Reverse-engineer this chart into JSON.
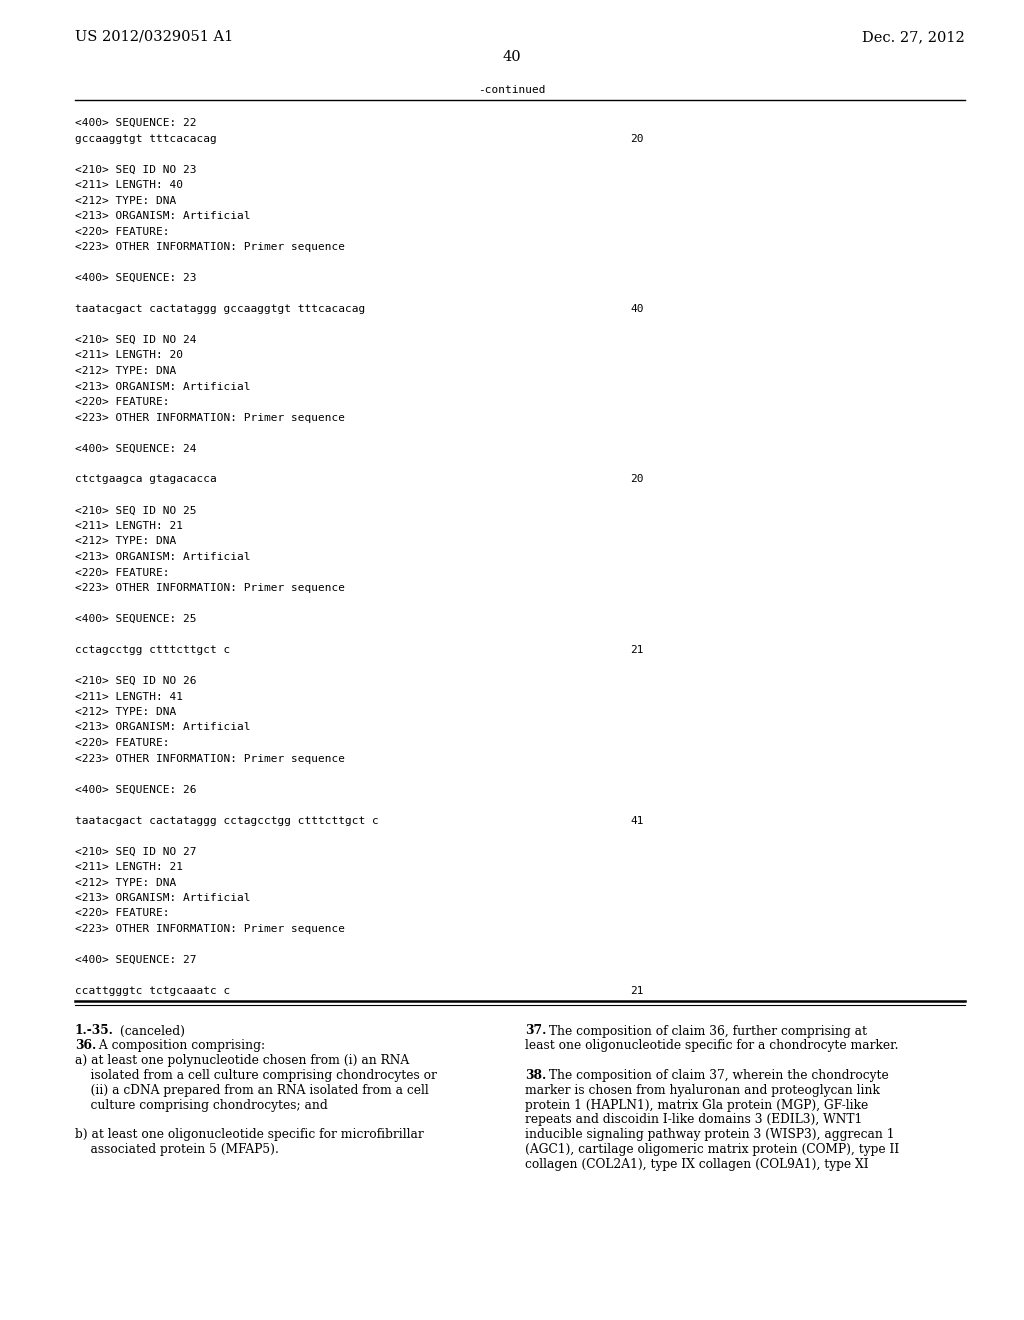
{
  "header_left": "US 2012/0329051 A1",
  "header_right": "Dec. 27, 2012",
  "page_number": "40",
  "continued_label": "-continued",
  "bg_color": "#ffffff",
  "text_color": "#000000",
  "mono_fontsize": 8.0,
  "body_fontsize": 8.8,
  "header_fontsize": 10.5,
  "seq_lines": [
    {
      "text": "<400> SEQUENCE: 22",
      "right_text": null
    },
    {
      "text": "gccaaggtgt tttcacacag",
      "right_text": "20"
    },
    {
      "text": "",
      "right_text": null
    },
    {
      "text": "<210> SEQ ID NO 23",
      "right_text": null
    },
    {
      "text": "<211> LENGTH: 40",
      "right_text": null
    },
    {
      "text": "<212> TYPE: DNA",
      "right_text": null
    },
    {
      "text": "<213> ORGANISM: Artificial",
      "right_text": null
    },
    {
      "text": "<220> FEATURE:",
      "right_text": null
    },
    {
      "text": "<223> OTHER INFORMATION: Primer sequence",
      "right_text": null
    },
    {
      "text": "",
      "right_text": null
    },
    {
      "text": "<400> SEQUENCE: 23",
      "right_text": null
    },
    {
      "text": "",
      "right_text": null
    },
    {
      "text": "taatacgact cactataggg gccaaggtgt tttcacacag",
      "right_text": "40"
    },
    {
      "text": "",
      "right_text": null
    },
    {
      "text": "<210> SEQ ID NO 24",
      "right_text": null
    },
    {
      "text": "<211> LENGTH: 20",
      "right_text": null
    },
    {
      "text": "<212> TYPE: DNA",
      "right_text": null
    },
    {
      "text": "<213> ORGANISM: Artificial",
      "right_text": null
    },
    {
      "text": "<220> FEATURE:",
      "right_text": null
    },
    {
      "text": "<223> OTHER INFORMATION: Primer sequence",
      "right_text": null
    },
    {
      "text": "",
      "right_text": null
    },
    {
      "text": "<400> SEQUENCE: 24",
      "right_text": null
    },
    {
      "text": "",
      "right_text": null
    },
    {
      "text": "ctctgaagca gtagacacca",
      "right_text": "20"
    },
    {
      "text": "",
      "right_text": null
    },
    {
      "text": "<210> SEQ ID NO 25",
      "right_text": null
    },
    {
      "text": "<211> LENGTH: 21",
      "right_text": null
    },
    {
      "text": "<212> TYPE: DNA",
      "right_text": null
    },
    {
      "text": "<213> ORGANISM: Artificial",
      "right_text": null
    },
    {
      "text": "<220> FEATURE:",
      "right_text": null
    },
    {
      "text": "<223> OTHER INFORMATION: Primer sequence",
      "right_text": null
    },
    {
      "text": "",
      "right_text": null
    },
    {
      "text": "<400> SEQUENCE: 25",
      "right_text": null
    },
    {
      "text": "",
      "right_text": null
    },
    {
      "text": "cctagcctgg ctttcttgct c",
      "right_text": "21"
    },
    {
      "text": "",
      "right_text": null
    },
    {
      "text": "<210> SEQ ID NO 26",
      "right_text": null
    },
    {
      "text": "<211> LENGTH: 41",
      "right_text": null
    },
    {
      "text": "<212> TYPE: DNA",
      "right_text": null
    },
    {
      "text": "<213> ORGANISM: Artificial",
      "right_text": null
    },
    {
      "text": "<220> FEATURE:",
      "right_text": null
    },
    {
      "text": "<223> OTHER INFORMATION: Primer sequence",
      "right_text": null
    },
    {
      "text": "",
      "right_text": null
    },
    {
      "text": "<400> SEQUENCE: 26",
      "right_text": null
    },
    {
      "text": "",
      "right_text": null
    },
    {
      "text": "taatacgact cactataggg cctagcctgg ctttcttgct c",
      "right_text": "41"
    },
    {
      "text": "",
      "right_text": null
    },
    {
      "text": "<210> SEQ ID NO 27",
      "right_text": null
    },
    {
      "text": "<211> LENGTH: 21",
      "right_text": null
    },
    {
      "text": "<212> TYPE: DNA",
      "right_text": null
    },
    {
      "text": "<213> ORGANISM: Artificial",
      "right_text": null
    },
    {
      "text": "<220> FEATURE:",
      "right_text": null
    },
    {
      "text": "<223> OTHER INFORMATION: Primer sequence",
      "right_text": null
    },
    {
      "text": "",
      "right_text": null
    },
    {
      "text": "<400> SEQUENCE: 27",
      "right_text": null
    },
    {
      "text": "",
      "right_text": null
    },
    {
      "text": "ccattgggtc tctgcaaatc c",
      "right_text": "21"
    }
  ],
  "left_claims": [
    {
      "bold": "1.-35.",
      "rest": " (canceled)",
      "indent": 0
    },
    {
      "bold": "36.",
      "rest": " A composition comprising:",
      "indent": 0
    },
    {
      "bold": null,
      "rest": "a) at least one polynucleotide chosen from (i) an RNA",
      "indent": 0
    },
    {
      "bold": null,
      "rest": "    isolated from a cell culture comprising chondrocytes or",
      "indent": 0
    },
    {
      "bold": null,
      "rest": "    (ii) a cDNA prepared from an RNA isolated from a cell",
      "indent": 0
    },
    {
      "bold": null,
      "rest": "    culture comprising chondrocytes; and",
      "indent": 0
    },
    {
      "bold": null,
      "rest": "",
      "indent": 0
    },
    {
      "bold": null,
      "rest": "b) at least one oligonucleotide specific for microfibrillar",
      "indent": 0
    },
    {
      "bold": null,
      "rest": "    associated protein 5 (MFAP5).",
      "indent": 0
    }
  ],
  "right_claims": [
    {
      "bold": "37.",
      "rest": " The composition of claim 36, further comprising at"
    },
    {
      "bold": null,
      "rest": "least one oligonucleotide specific for a chondrocyte marker."
    },
    {
      "bold": null,
      "rest": ""
    },
    {
      "bold": "38.",
      "rest": " The composition of claim 37, wherein the chondrocyte"
    },
    {
      "bold": null,
      "rest": "marker is chosen from hyaluronan and proteoglycan link"
    },
    {
      "bold": null,
      "rest": "protein 1 (HAPLN1), matrix Gla protein (MGP), GF-like"
    },
    {
      "bold": null,
      "rest": "repeats and discoidin I-like domains 3 (EDIL3), WNT1"
    },
    {
      "bold": null,
      "rest": "inducible signaling pathway protein 3 (WISP3), aggrecan 1"
    },
    {
      "bold": null,
      "rest": "(AGC1), cartilage oligomeric matrix protein (COMP), type II"
    },
    {
      "bold": null,
      "rest": "collagen (COL2A1), type IX collagen (COL9A1), type XI"
    }
  ]
}
